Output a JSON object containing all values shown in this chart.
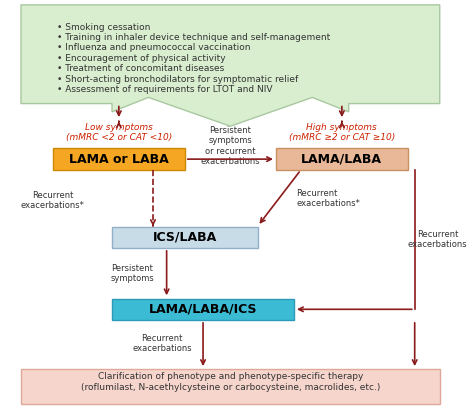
{
  "top_box": {
    "color": "#d9edcf",
    "border_color": "#a8c8a0",
    "text": "• Smoking cessation\n• Training in inhaler device technique and self-management\n• Influenza and pneumococcal vaccination\n• Encouragement of physical activity\n• Treatment of concomitant diseases\n• Short-acting bronchodilators for symptomatic relief\n• Assessment of requirements for LTOT and NIV",
    "text_color": "#333333",
    "font_size": 6.5
  },
  "bottom_box": {
    "color": "#f5d5cc",
    "border_color": "#e0a898",
    "text_line1": "Clarification of phenotype and phenotype-specific therapy",
    "text_line2": "(roflumilast, N-acethylcysteine or carbocysteine, macrolides, etc.)",
    "text_color": "#333333",
    "font_size": 6.5
  },
  "lama_laba_box": {
    "color": "#f5a623",
    "border_color": "#cc8800",
    "text": "LAMA or LABA",
    "text_color": "#000000",
    "font_size": 9.0
  },
  "lama_laba2_box": {
    "color": "#e8b898",
    "border_color": "#c89060",
    "text": "LAMA/LABA",
    "text_color": "#000000",
    "font_size": 9.0
  },
  "ics_laba_box": {
    "color": "#c8dce8",
    "border_color": "#90b0c8",
    "text": "ICS/LABA",
    "text_color": "#000000",
    "font_size": 9.0
  },
  "triple_box": {
    "color": "#3bbbd4",
    "border_color": "#2a9ab8",
    "text": "LAMA/LABA/ICS",
    "text_color": "#000000",
    "font_size": 9.0
  },
  "arrow_color": "#8b1a1a",
  "low_symptoms_text_line1": "Low symptoms",
  "low_symptoms_text_line2": "(mMRC <2 or CAT <10)",
  "high_symptoms_text_line1": "High symptoms",
  "high_symptoms_text_line2": "(mMRC ≥2 or CAT ≥10)",
  "symptoms_color": "#cc2200",
  "label_color": "#333333",
  "label_font_size": 6.0
}
